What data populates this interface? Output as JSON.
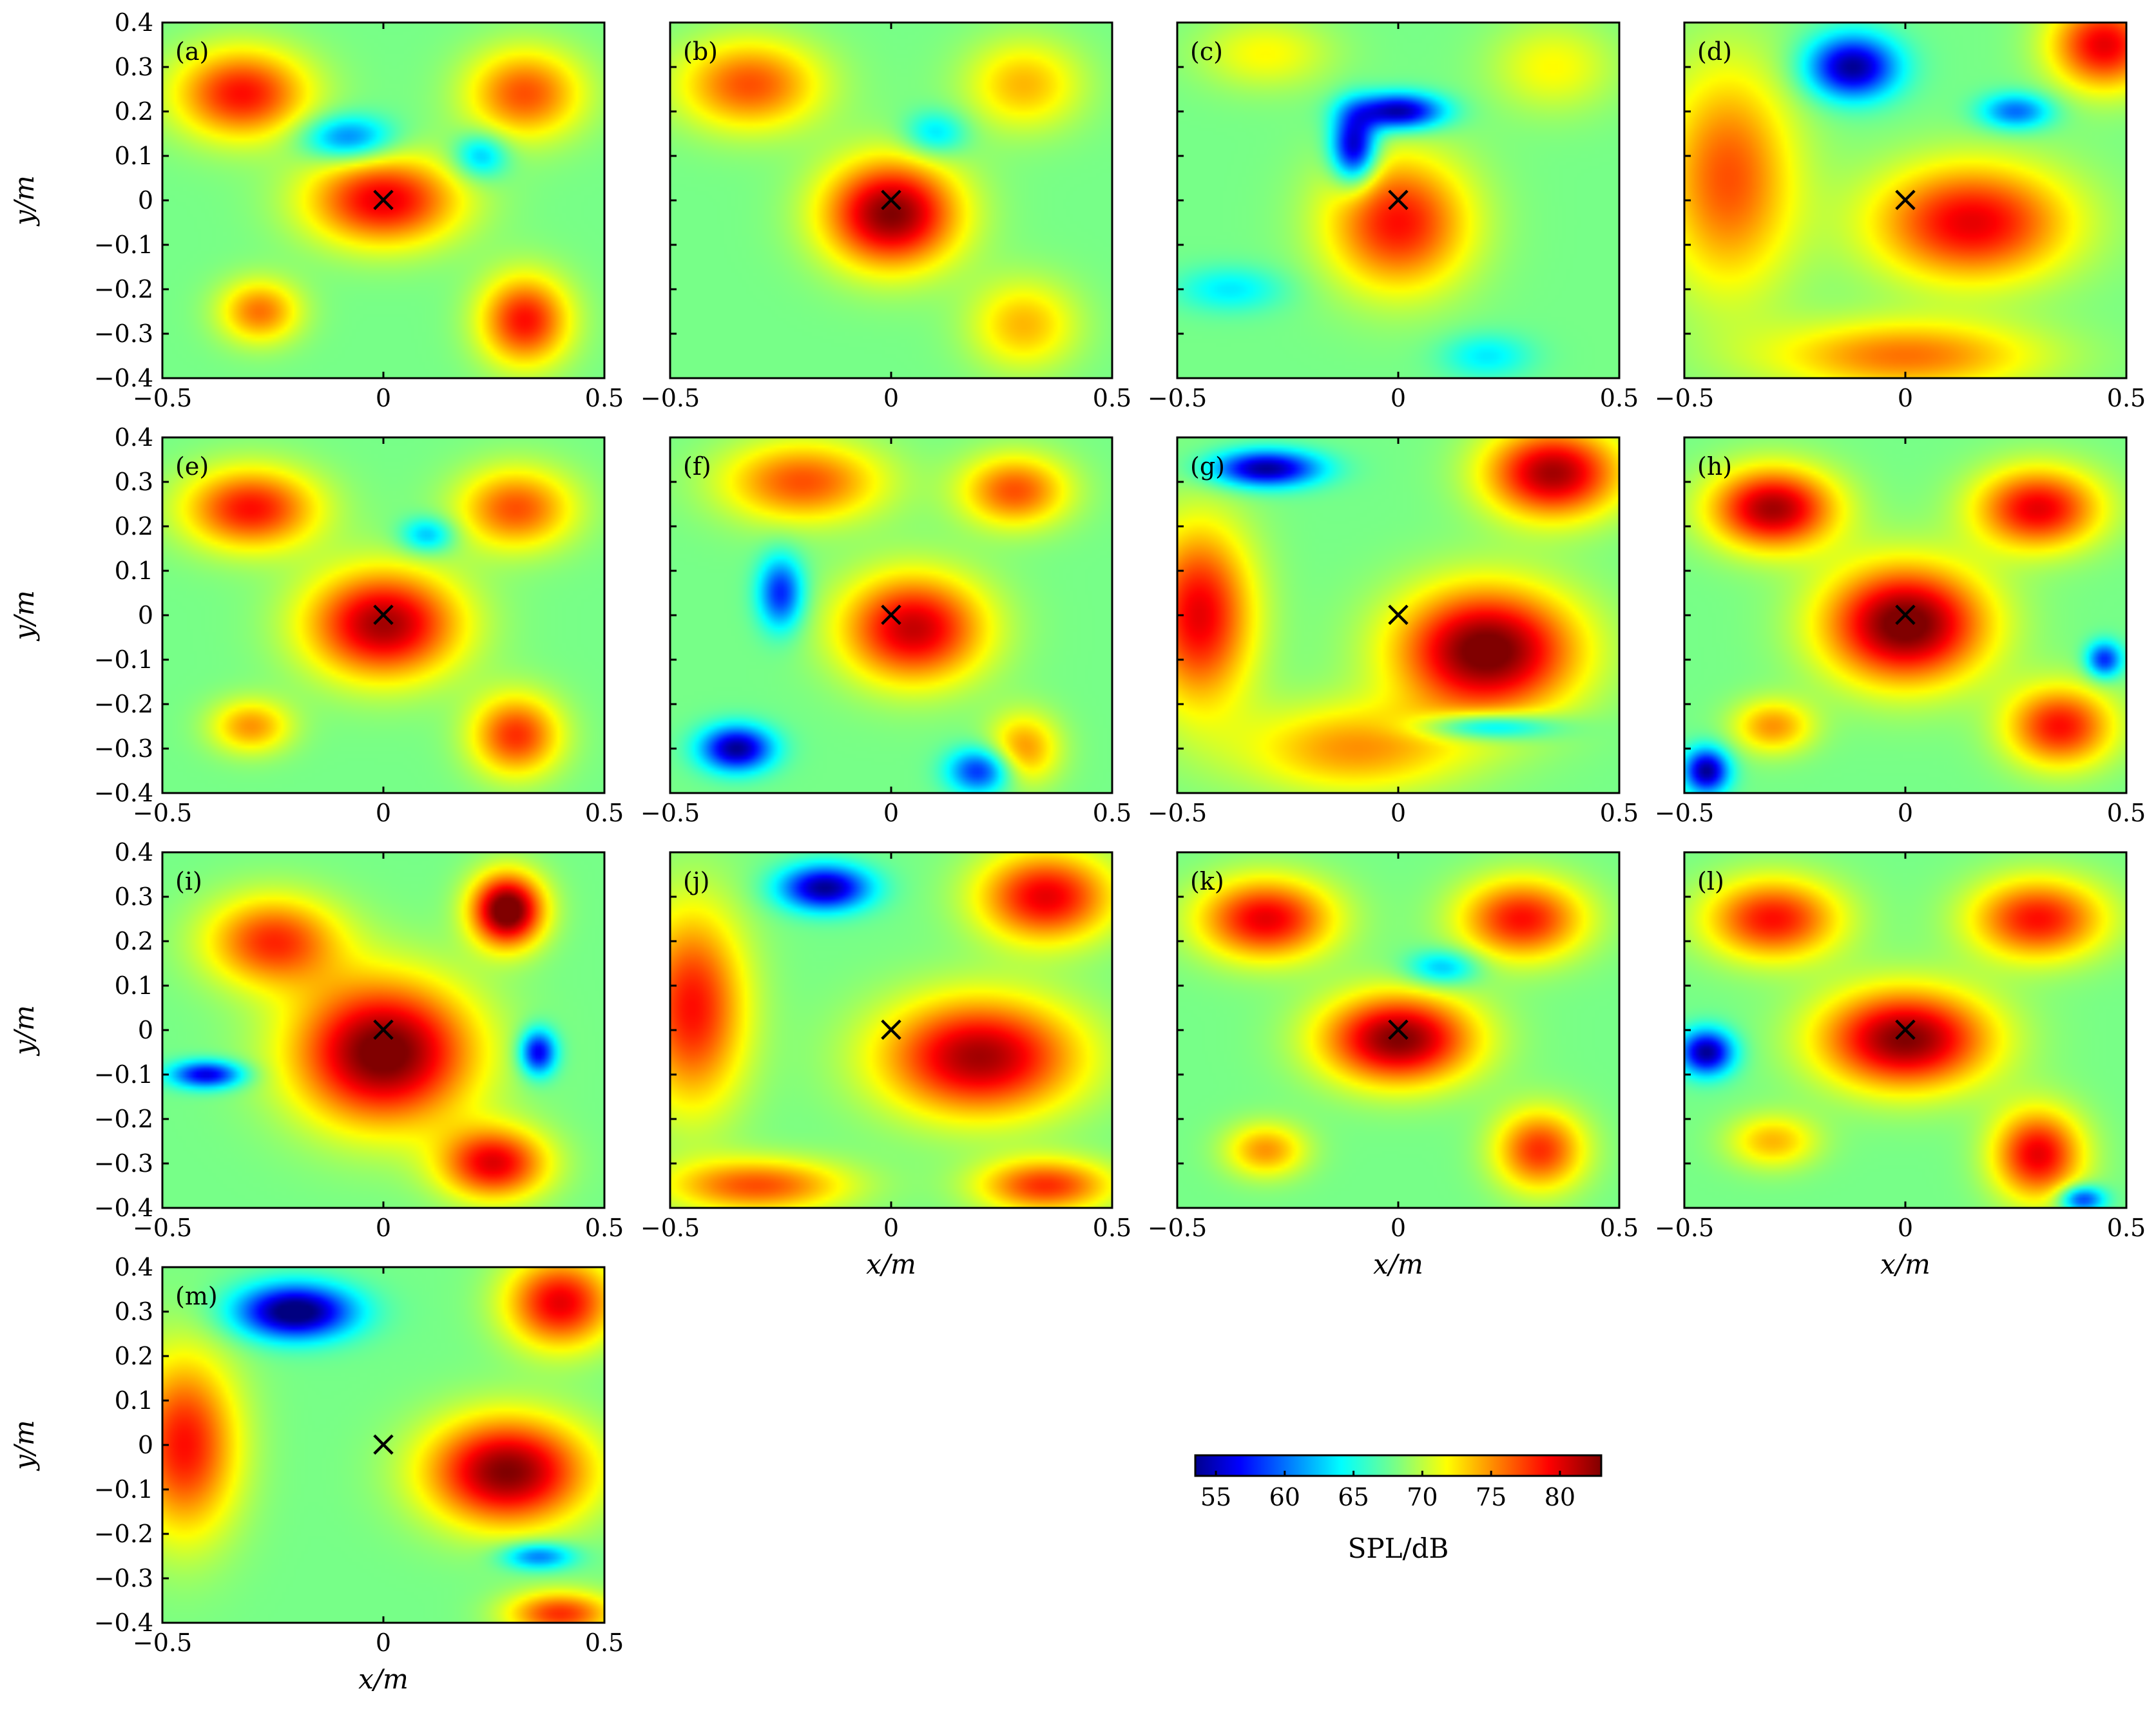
{
  "figure": {
    "colormap": "jet",
    "marker": "×",
    "x_label": "x/m",
    "y_label": "y/m"
  },
  "chart_data": {
    "type": "heatmap",
    "quantity": "SPL/dB",
    "xlim": [
      -0.5,
      0.5
    ],
    "ylim": [
      -0.4,
      0.4
    ],
    "x_ticks": [
      "−0.5",
      "0",
      "0.5"
    ],
    "y_ticks": [
      "0.4",
      "0.3",
      "0.2",
      "0.1",
      "0",
      "−0.1",
      "−0.2",
      "−0.3",
      "−0.4"
    ],
    "colorbar": {
      "min": 53.5,
      "max": 83,
      "ticks": [
        "55",
        "60",
        "65",
        "70",
        "75",
        "80"
      ],
      "label": "SPL/dB"
    },
    "source_marker": {
      "x": 0,
      "y": 0,
      "symbol": "×"
    },
    "panels": [
      {
        "label": "(a)",
        "blobs": [
          [
            0,
            0,
            0.17,
            0.1,
            80
          ],
          [
            -0.32,
            0.24,
            0.15,
            0.1,
            79
          ],
          [
            0.32,
            0.24,
            0.13,
            0.1,
            77
          ],
          [
            -0.28,
            -0.25,
            0.09,
            0.07,
            76
          ],
          [
            0.32,
            -0.27,
            0.1,
            0.1,
            79
          ],
          [
            -0.08,
            0.14,
            0.1,
            0.05,
            -8
          ],
          [
            0.22,
            0.1,
            0.06,
            0.05,
            -6
          ]
        ]
      },
      {
        "label": "(b)",
        "blobs": [
          [
            0,
            -0.03,
            0.15,
            0.12,
            83
          ],
          [
            -0.32,
            0.26,
            0.16,
            0.1,
            77
          ],
          [
            0.3,
            0.26,
            0.13,
            0.1,
            74
          ],
          [
            0.3,
            -0.28,
            0.12,
            0.1,
            74
          ],
          [
            0.1,
            0.15,
            0.07,
            0.05,
            -5
          ]
        ]
      },
      {
        "label": "(c)",
        "blobs": [
          [
            0,
            -0.05,
            0.16,
            0.15,
            79
          ],
          [
            -0.3,
            0.33,
            0.15,
            0.08,
            72
          ],
          [
            0.35,
            0.3,
            0.14,
            0.1,
            72
          ],
          [
            -0.1,
            0.12,
            0.05,
            0.08,
            -14
          ],
          [
            0.0,
            0.2,
            0.1,
            0.04,
            -14
          ],
          [
            -0.38,
            -0.2,
            0.12,
            0.05,
            -4
          ],
          [
            0.2,
            -0.35,
            0.1,
            0.05,
            -4
          ]
        ]
      },
      {
        "label": "(d)",
        "blobs": [
          [
            0.15,
            -0.05,
            0.22,
            0.13,
            80
          ],
          [
            -0.4,
            0.05,
            0.15,
            0.25,
            77
          ],
          [
            0.45,
            0.35,
            0.12,
            0.1,
            80
          ],
          [
            0,
            -0.35,
            0.3,
            0.08,
            76
          ],
          [
            -0.12,
            0.3,
            0.1,
            0.07,
            -14
          ],
          [
            0.25,
            0.2,
            0.08,
            0.04,
            -8
          ]
        ]
      },
      {
        "label": "(e)",
        "blobs": [
          [
            0,
            -0.02,
            0.17,
            0.12,
            82
          ],
          [
            -0.3,
            0.24,
            0.15,
            0.09,
            79
          ],
          [
            0.3,
            0.24,
            0.13,
            0.09,
            77
          ],
          [
            -0.3,
            -0.25,
            0.09,
            0.06,
            75
          ],
          [
            0.3,
            -0.27,
            0.1,
            0.09,
            78
          ],
          [
            0.1,
            0.18,
            0.06,
            0.04,
            -6
          ]
        ]
      },
      {
        "label": "(f)",
        "blobs": [
          [
            0.05,
            -0.03,
            0.16,
            0.12,
            81
          ],
          [
            -0.2,
            0.3,
            0.18,
            0.09,
            77
          ],
          [
            0.28,
            0.28,
            0.12,
            0.08,
            77
          ],
          [
            0.3,
            -0.3,
            0.08,
            0.08,
            75
          ],
          [
            -0.25,
            0.05,
            0.05,
            0.08,
            -10
          ],
          [
            -0.35,
            -0.3,
            0.08,
            0.05,
            -14
          ],
          [
            0.2,
            -0.35,
            0.07,
            0.05,
            -10
          ]
        ]
      },
      {
        "label": "(g)",
        "blobs": [
          [
            0.2,
            -0.08,
            0.2,
            0.14,
            84
          ],
          [
            -0.45,
            0,
            0.12,
            0.2,
            80
          ],
          [
            0.35,
            0.32,
            0.15,
            0.1,
            82
          ],
          [
            -0.1,
            -0.3,
            0.25,
            0.1,
            75
          ],
          [
            -0.3,
            0.33,
            0.12,
            0.04,
            -14
          ],
          [
            0.2,
            -0.25,
            0.15,
            0.03,
            -8
          ]
        ]
      },
      {
        "label": "(h)",
        "blobs": [
          [
            0,
            -0.02,
            0.18,
            0.13,
            84
          ],
          [
            -0.3,
            0.24,
            0.14,
            0.09,
            82
          ],
          [
            0.3,
            0.24,
            0.14,
            0.09,
            80
          ],
          [
            -0.3,
            -0.25,
            0.09,
            0.06,
            75
          ],
          [
            0.35,
            -0.25,
            0.12,
            0.09,
            79
          ],
          [
            -0.45,
            -0.35,
            0.05,
            0.05,
            -14
          ],
          [
            0.45,
            -0.1,
            0.04,
            0.04,
            -10
          ]
        ]
      },
      {
        "label": "(i)",
        "blobs": [
          [
            0,
            -0.05,
            0.2,
            0.16,
            84
          ],
          [
            0.28,
            0.27,
            0.08,
            0.08,
            85
          ],
          [
            -0.25,
            0.2,
            0.15,
            0.1,
            78
          ],
          [
            0.25,
            -0.3,
            0.12,
            0.08,
            80
          ],
          [
            -0.4,
            -0.1,
            0.08,
            0.03,
            -12
          ],
          [
            0.35,
            -0.05,
            0.04,
            0.05,
            -12
          ]
        ]
      },
      {
        "label": "(j)",
        "blobs": [
          [
            0.2,
            -0.06,
            0.22,
            0.13,
            82
          ],
          [
            -0.45,
            0.05,
            0.12,
            0.22,
            79
          ],
          [
            0.35,
            0.3,
            0.15,
            0.1,
            80
          ],
          [
            -0.3,
            -0.35,
            0.2,
            0.06,
            77
          ],
          [
            0.35,
            -0.35,
            0.15,
            0.06,
            78
          ],
          [
            -0.15,
            0.32,
            0.1,
            0.05,
            -14
          ]
        ]
      },
      {
        "label": "(k)",
        "blobs": [
          [
            0,
            -0.02,
            0.17,
            0.1,
            83
          ],
          [
            -0.3,
            0.25,
            0.15,
            0.09,
            80
          ],
          [
            0.28,
            0.25,
            0.14,
            0.09,
            79
          ],
          [
            -0.3,
            -0.27,
            0.09,
            0.06,
            75
          ],
          [
            0.32,
            -0.27,
            0.1,
            0.09,
            78
          ],
          [
            0.1,
            0.14,
            0.08,
            0.04,
            -6
          ]
        ]
      },
      {
        "label": "(l)",
        "blobs": [
          [
            0,
            -0.02,
            0.19,
            0.11,
            83
          ],
          [
            -0.3,
            0.25,
            0.15,
            0.09,
            79
          ],
          [
            0.3,
            0.25,
            0.15,
            0.09,
            79
          ],
          [
            0.3,
            -0.28,
            0.1,
            0.1,
            80
          ],
          [
            -0.3,
            -0.25,
            0.1,
            0.06,
            74
          ],
          [
            -0.45,
            -0.05,
            0.06,
            0.05,
            -14
          ],
          [
            0.4,
            -0.38,
            0.05,
            0.03,
            -10
          ]
        ]
      },
      {
        "label": "(m)",
        "blobs": [
          [
            0.28,
            -0.06,
            0.18,
            0.12,
            83
          ],
          [
            -0.45,
            0,
            0.12,
            0.2,
            79
          ],
          [
            0.4,
            0.32,
            0.12,
            0.1,
            80
          ],
          [
            -0.2,
            0.3,
            0.13,
            0.06,
            -16
          ],
          [
            0.4,
            -0.38,
            0.12,
            0.05,
            78
          ],
          [
            0.35,
            -0.25,
            0.08,
            0.03,
            -8
          ]
        ]
      }
    ]
  }
}
